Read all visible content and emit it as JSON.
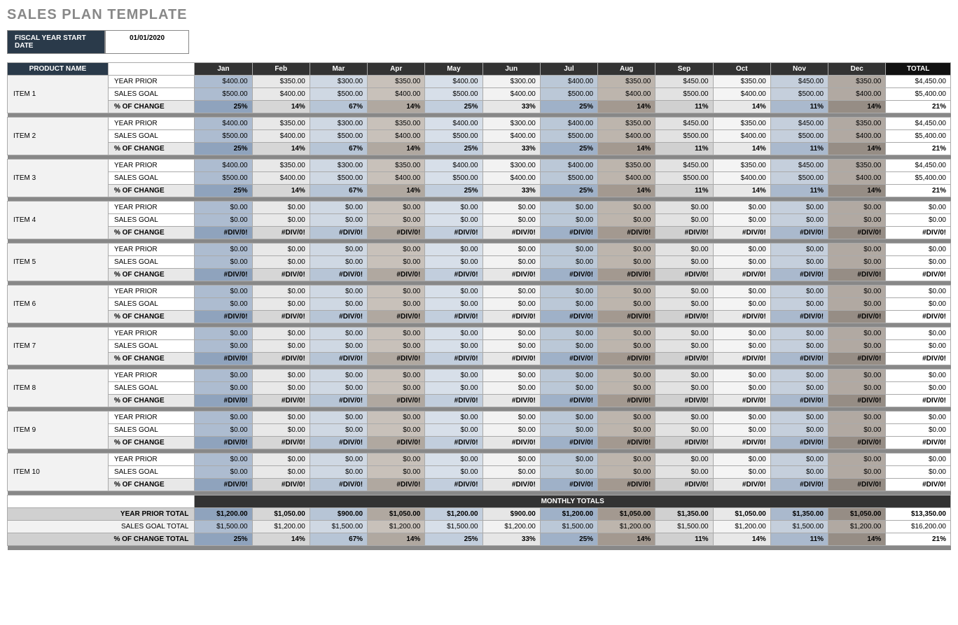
{
  "title": "SALES PLAN TEMPLATE",
  "fiscal": {
    "label": "FISCAL YEAR START DATE",
    "value": "01/01/2020"
  },
  "headers": {
    "product": "PRODUCT NAME",
    "months": [
      "Jan",
      "Feb",
      "Mar",
      "Apr",
      "May",
      "Jun",
      "Jul",
      "Aug",
      "Sep",
      "Oct",
      "Nov",
      "Dec"
    ],
    "total": "TOTAL"
  },
  "rowLabels": {
    "prior": "YEAR PRIOR",
    "goal": "SALES GOAL",
    "change": "% OF CHANGE"
  },
  "items": [
    {
      "name": "ITEM 1",
      "prior": [
        "$400.00",
        "$350.00",
        "$300.00",
        "$350.00",
        "$400.00",
        "$300.00",
        "$400.00",
        "$350.00",
        "$450.00",
        "$350.00",
        "$450.00",
        "$350.00"
      ],
      "goal": [
        "$500.00",
        "$400.00",
        "$500.00",
        "$400.00",
        "$500.00",
        "$400.00",
        "$500.00",
        "$400.00",
        "$500.00",
        "$400.00",
        "$500.00",
        "$400.00"
      ],
      "change": [
        "25%",
        "14%",
        "67%",
        "14%",
        "25%",
        "33%",
        "25%",
        "14%",
        "11%",
        "14%",
        "11%",
        "14%"
      ],
      "totals": {
        "prior": "$4,450.00",
        "goal": "$5,400.00",
        "change": "21%"
      }
    },
    {
      "name": "ITEM 2",
      "prior": [
        "$400.00",
        "$350.00",
        "$300.00",
        "$350.00",
        "$400.00",
        "$300.00",
        "$400.00",
        "$350.00",
        "$450.00",
        "$350.00",
        "$450.00",
        "$350.00"
      ],
      "goal": [
        "$500.00",
        "$400.00",
        "$500.00",
        "$400.00",
        "$500.00",
        "$400.00",
        "$500.00",
        "$400.00",
        "$500.00",
        "$400.00",
        "$500.00",
        "$400.00"
      ],
      "change": [
        "25%",
        "14%",
        "67%",
        "14%",
        "25%",
        "33%",
        "25%",
        "14%",
        "11%",
        "14%",
        "11%",
        "14%"
      ],
      "totals": {
        "prior": "$4,450.00",
        "goal": "$5,400.00",
        "change": "21%"
      }
    },
    {
      "name": "ITEM 3",
      "prior": [
        "$400.00",
        "$350.00",
        "$300.00",
        "$350.00",
        "$400.00",
        "$300.00",
        "$400.00",
        "$350.00",
        "$450.00",
        "$350.00",
        "$450.00",
        "$350.00"
      ],
      "goal": [
        "$500.00",
        "$400.00",
        "$500.00",
        "$400.00",
        "$500.00",
        "$400.00",
        "$500.00",
        "$400.00",
        "$500.00",
        "$400.00",
        "$500.00",
        "$400.00"
      ],
      "change": [
        "25%",
        "14%",
        "67%",
        "14%",
        "25%",
        "33%",
        "25%",
        "14%",
        "11%",
        "14%",
        "11%",
        "14%"
      ],
      "totals": {
        "prior": "$4,450.00",
        "goal": "$5,400.00",
        "change": "21%"
      }
    },
    {
      "name": "ITEM 4",
      "prior": [
        "$0.00",
        "$0.00",
        "$0.00",
        "$0.00",
        "$0.00",
        "$0.00",
        "$0.00",
        "$0.00",
        "$0.00",
        "$0.00",
        "$0.00",
        "$0.00"
      ],
      "goal": [
        "$0.00",
        "$0.00",
        "$0.00",
        "$0.00",
        "$0.00",
        "$0.00",
        "$0.00",
        "$0.00",
        "$0.00",
        "$0.00",
        "$0.00",
        "$0.00"
      ],
      "change": [
        "#DIV/0!",
        "#DIV/0!",
        "#DIV/0!",
        "#DIV/0!",
        "#DIV/0!",
        "#DIV/0!",
        "#DIV/0!",
        "#DIV/0!",
        "#DIV/0!",
        "#DIV/0!",
        "#DIV/0!",
        "#DIV/0!"
      ],
      "totals": {
        "prior": "$0.00",
        "goal": "$0.00",
        "change": "#DIV/0!"
      }
    },
    {
      "name": "ITEM 5",
      "prior": [
        "$0.00",
        "$0.00",
        "$0.00",
        "$0.00",
        "$0.00",
        "$0.00",
        "$0.00",
        "$0.00",
        "$0.00",
        "$0.00",
        "$0.00",
        "$0.00"
      ],
      "goal": [
        "$0.00",
        "$0.00",
        "$0.00",
        "$0.00",
        "$0.00",
        "$0.00",
        "$0.00",
        "$0.00",
        "$0.00",
        "$0.00",
        "$0.00",
        "$0.00"
      ],
      "change": [
        "#DIV/0!",
        "#DIV/0!",
        "#DIV/0!",
        "#DIV/0!",
        "#DIV/0!",
        "#DIV/0!",
        "#DIV/0!",
        "#DIV/0!",
        "#DIV/0!",
        "#DIV/0!",
        "#DIV/0!",
        "#DIV/0!"
      ],
      "totals": {
        "prior": "$0.00",
        "goal": "$0.00",
        "change": "#DIV/0!"
      }
    },
    {
      "name": "ITEM 6",
      "prior": [
        "$0.00",
        "$0.00",
        "$0.00",
        "$0.00",
        "$0.00",
        "$0.00",
        "$0.00",
        "$0.00",
        "$0.00",
        "$0.00",
        "$0.00",
        "$0.00"
      ],
      "goal": [
        "$0.00",
        "$0.00",
        "$0.00",
        "$0.00",
        "$0.00",
        "$0.00",
        "$0.00",
        "$0.00",
        "$0.00",
        "$0.00",
        "$0.00",
        "$0.00"
      ],
      "change": [
        "#DIV/0!",
        "#DIV/0!",
        "#DIV/0!",
        "#DIV/0!",
        "#DIV/0!",
        "#DIV/0!",
        "#DIV/0!",
        "#DIV/0!",
        "#DIV/0!",
        "#DIV/0!",
        "#DIV/0!",
        "#DIV/0!"
      ],
      "totals": {
        "prior": "$0.00",
        "goal": "$0.00",
        "change": "#DIV/0!"
      }
    },
    {
      "name": "ITEM 7",
      "prior": [
        "$0.00",
        "$0.00",
        "$0.00",
        "$0.00",
        "$0.00",
        "$0.00",
        "$0.00",
        "$0.00",
        "$0.00",
        "$0.00",
        "$0.00",
        "$0.00"
      ],
      "goal": [
        "$0.00",
        "$0.00",
        "$0.00",
        "$0.00",
        "$0.00",
        "$0.00",
        "$0.00",
        "$0.00",
        "$0.00",
        "$0.00",
        "$0.00",
        "$0.00"
      ],
      "change": [
        "#DIV/0!",
        "#DIV/0!",
        "#DIV/0!",
        "#DIV/0!",
        "#DIV/0!",
        "#DIV/0!",
        "#DIV/0!",
        "#DIV/0!",
        "#DIV/0!",
        "#DIV/0!",
        "#DIV/0!",
        "#DIV/0!"
      ],
      "totals": {
        "prior": "$0.00",
        "goal": "$0.00",
        "change": "#DIV/0!"
      }
    },
    {
      "name": "ITEM 8",
      "prior": [
        "$0.00",
        "$0.00",
        "$0.00",
        "$0.00",
        "$0.00",
        "$0.00",
        "$0.00",
        "$0.00",
        "$0.00",
        "$0.00",
        "$0.00",
        "$0.00"
      ],
      "goal": [
        "$0.00",
        "$0.00",
        "$0.00",
        "$0.00",
        "$0.00",
        "$0.00",
        "$0.00",
        "$0.00",
        "$0.00",
        "$0.00",
        "$0.00",
        "$0.00"
      ],
      "change": [
        "#DIV/0!",
        "#DIV/0!",
        "#DIV/0!",
        "#DIV/0!",
        "#DIV/0!",
        "#DIV/0!",
        "#DIV/0!",
        "#DIV/0!",
        "#DIV/0!",
        "#DIV/0!",
        "#DIV/0!",
        "#DIV/0!"
      ],
      "totals": {
        "prior": "$0.00",
        "goal": "$0.00",
        "change": "#DIV/0!"
      }
    },
    {
      "name": "ITEM 9",
      "prior": [
        "$0.00",
        "$0.00",
        "$0.00",
        "$0.00",
        "$0.00",
        "$0.00",
        "$0.00",
        "$0.00",
        "$0.00",
        "$0.00",
        "$0.00",
        "$0.00"
      ],
      "goal": [
        "$0.00",
        "$0.00",
        "$0.00",
        "$0.00",
        "$0.00",
        "$0.00",
        "$0.00",
        "$0.00",
        "$0.00",
        "$0.00",
        "$0.00",
        "$0.00"
      ],
      "change": [
        "#DIV/0!",
        "#DIV/0!",
        "#DIV/0!",
        "#DIV/0!",
        "#DIV/0!",
        "#DIV/0!",
        "#DIV/0!",
        "#DIV/0!",
        "#DIV/0!",
        "#DIV/0!",
        "#DIV/0!",
        "#DIV/0!"
      ],
      "totals": {
        "prior": "$0.00",
        "goal": "$0.00",
        "change": "#DIV/0!"
      }
    },
    {
      "name": "ITEM 10",
      "prior": [
        "$0.00",
        "$0.00",
        "$0.00",
        "$0.00",
        "$0.00",
        "$0.00",
        "$0.00",
        "$0.00",
        "$0.00",
        "$0.00",
        "$0.00",
        "$0.00"
      ],
      "goal": [
        "$0.00",
        "$0.00",
        "$0.00",
        "$0.00",
        "$0.00",
        "$0.00",
        "$0.00",
        "$0.00",
        "$0.00",
        "$0.00",
        "$0.00",
        "$0.00"
      ],
      "change": [
        "#DIV/0!",
        "#DIV/0!",
        "#DIV/0!",
        "#DIV/0!",
        "#DIV/0!",
        "#DIV/0!",
        "#DIV/0!",
        "#DIV/0!",
        "#DIV/0!",
        "#DIV/0!",
        "#DIV/0!",
        "#DIV/0!"
      ],
      "totals": {
        "prior": "$0.00",
        "goal": "$0.00",
        "change": "#DIV/0!"
      }
    }
  ],
  "monthlyTotals": {
    "header": "MONTHLY TOTALS",
    "priorLabel": "YEAR PRIOR TOTAL",
    "goalLabel": "SALES GOAL TOTAL",
    "changeLabel": "% OF CHANGE TOTAL",
    "prior": [
      "$1,200.00",
      "$1,050.00",
      "$900.00",
      "$1,050.00",
      "$1,200.00",
      "$900.00",
      "$1,200.00",
      "$1,050.00",
      "$1,350.00",
      "$1,050.00",
      "$1,350.00",
      "$1,050.00"
    ],
    "goal": [
      "$1,500.00",
      "$1,200.00",
      "$1,500.00",
      "$1,200.00",
      "$1,500.00",
      "$1,200.00",
      "$1,500.00",
      "$1,200.00",
      "$1,500.00",
      "$1,200.00",
      "$1,500.00",
      "$1,200.00"
    ],
    "change": [
      "25%",
      "14%",
      "67%",
      "14%",
      "25%",
      "33%",
      "25%",
      "14%",
      "11%",
      "14%",
      "11%",
      "14%"
    ],
    "grand": {
      "prior": "$13,350.00",
      "goal": "$16,200.00",
      "change": "21%"
    }
  }
}
